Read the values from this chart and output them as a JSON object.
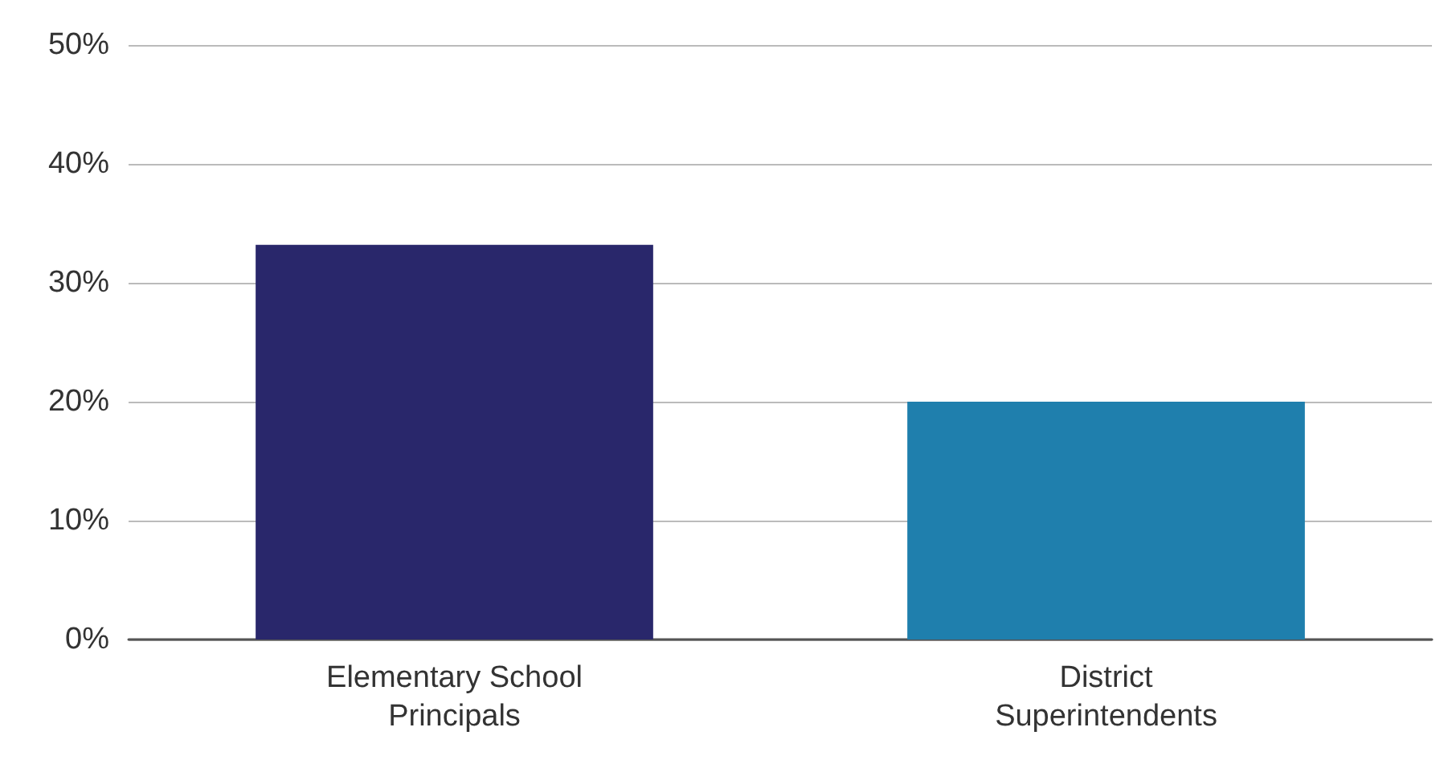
{
  "chart_data": {
    "type": "bar",
    "categories": [
      "Elementary School\nPrincipals",
      "District\nSuperintendents"
    ],
    "values": [
      33.2,
      20
    ],
    "colors": [
      "#29276b",
      "#1f7fad"
    ],
    "ylim": [
      0,
      50
    ],
    "yticks": [
      {
        "value": 0,
        "label": "0%"
      },
      {
        "value": 10,
        "label": "10%"
      },
      {
        "value": 20,
        "label": "20%"
      },
      {
        "value": 30,
        "label": "30%"
      },
      {
        "value": 40,
        "label": "40%"
      },
      {
        "value": 50,
        "label": "50%"
      }
    ],
    "grid": "y"
  }
}
